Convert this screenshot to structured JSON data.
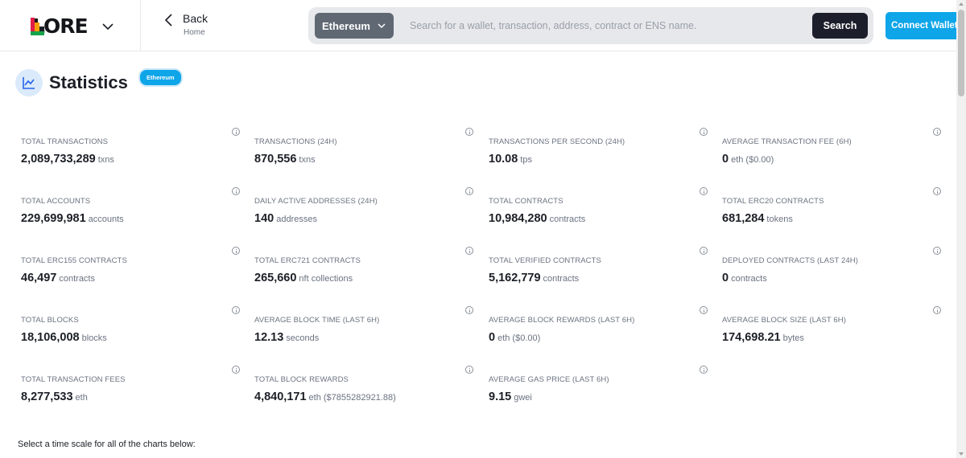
{
  "header": {
    "logo_text": "LORE",
    "back_label": "Back",
    "back_sub": "Home",
    "network_selected": "Ethereum",
    "search_placeholder": "Search for a wallet, transaction, address, contract or ENS name.",
    "search_button": "Search",
    "connect_button": "Connect Wallet"
  },
  "page": {
    "title": "Statistics",
    "network_badge": "Ethereum",
    "timescale_prompt": "Select a time scale for all of the charts below:"
  },
  "colors": {
    "accent": "#0ea5e9",
    "dark_button": "#1c1f2b",
    "select_bg": "#5f6873"
  },
  "stats": [
    {
      "label": "TOTAL TRANSACTIONS",
      "value": "2,089,733,289",
      "unit": "txns"
    },
    {
      "label": "TRANSACTIONS (24H)",
      "value": "870,556",
      "unit": "txns"
    },
    {
      "label": "TRANSACTIONS PER SECOND (24H)",
      "value": "10.08",
      "unit": "tps"
    },
    {
      "label": "AVERAGE TRANSACTION FEE (6H)",
      "value": "0",
      "unit": "eth ($0.00)"
    },
    {
      "label": "TOTAL ACCOUNTS",
      "value": "229,699,981",
      "unit": "accounts"
    },
    {
      "label": "DAILY ACTIVE ADDRESSES (24H)",
      "value": "140",
      "unit": "addresses"
    },
    {
      "label": "TOTAL CONTRACTS",
      "value": "10,984,280",
      "unit": "contracts"
    },
    {
      "label": "TOTAL ERC20 CONTRACTS",
      "value": "681,284",
      "unit": "tokens"
    },
    {
      "label": "TOTAL ERC155 CONTRACTS",
      "value": "46,497",
      "unit": "contracts"
    },
    {
      "label": "TOTAL ERC721 CONTRACTS",
      "value": "265,660",
      "unit": "nft collections"
    },
    {
      "label": "TOTAL VERIFIED CONTRACTS",
      "value": "5,162,779",
      "unit": "contracts"
    },
    {
      "label": "DEPLOYED CONTRACTS (LAST 24H)",
      "value": "0",
      "unit": "contracts"
    },
    {
      "label": "TOTAL BLOCKS",
      "value": "18,106,008",
      "unit": "blocks"
    },
    {
      "label": "AVERAGE BLOCK TIME (LAST 6H)",
      "value": "12.13",
      "unit": "seconds"
    },
    {
      "label": "AVERAGE BLOCK REWARDS (LAST 6H)",
      "value": "0",
      "unit": "eth ($0.00)"
    },
    {
      "label": "AVERAGE BLOCK SIZE (LAST 6H)",
      "value": "174,698.21",
      "unit": "bytes"
    },
    {
      "label": "TOTAL TRANSACTION FEES",
      "value": "8,277,533",
      "unit": "eth"
    },
    {
      "label": "TOTAL BLOCK REWARDS",
      "value": "4,840,171",
      "unit": "eth ($7855282921.88)"
    },
    {
      "label": "AVERAGE GAS PRICE (LAST 6H)",
      "value": "9.15",
      "unit": "gwei"
    }
  ]
}
